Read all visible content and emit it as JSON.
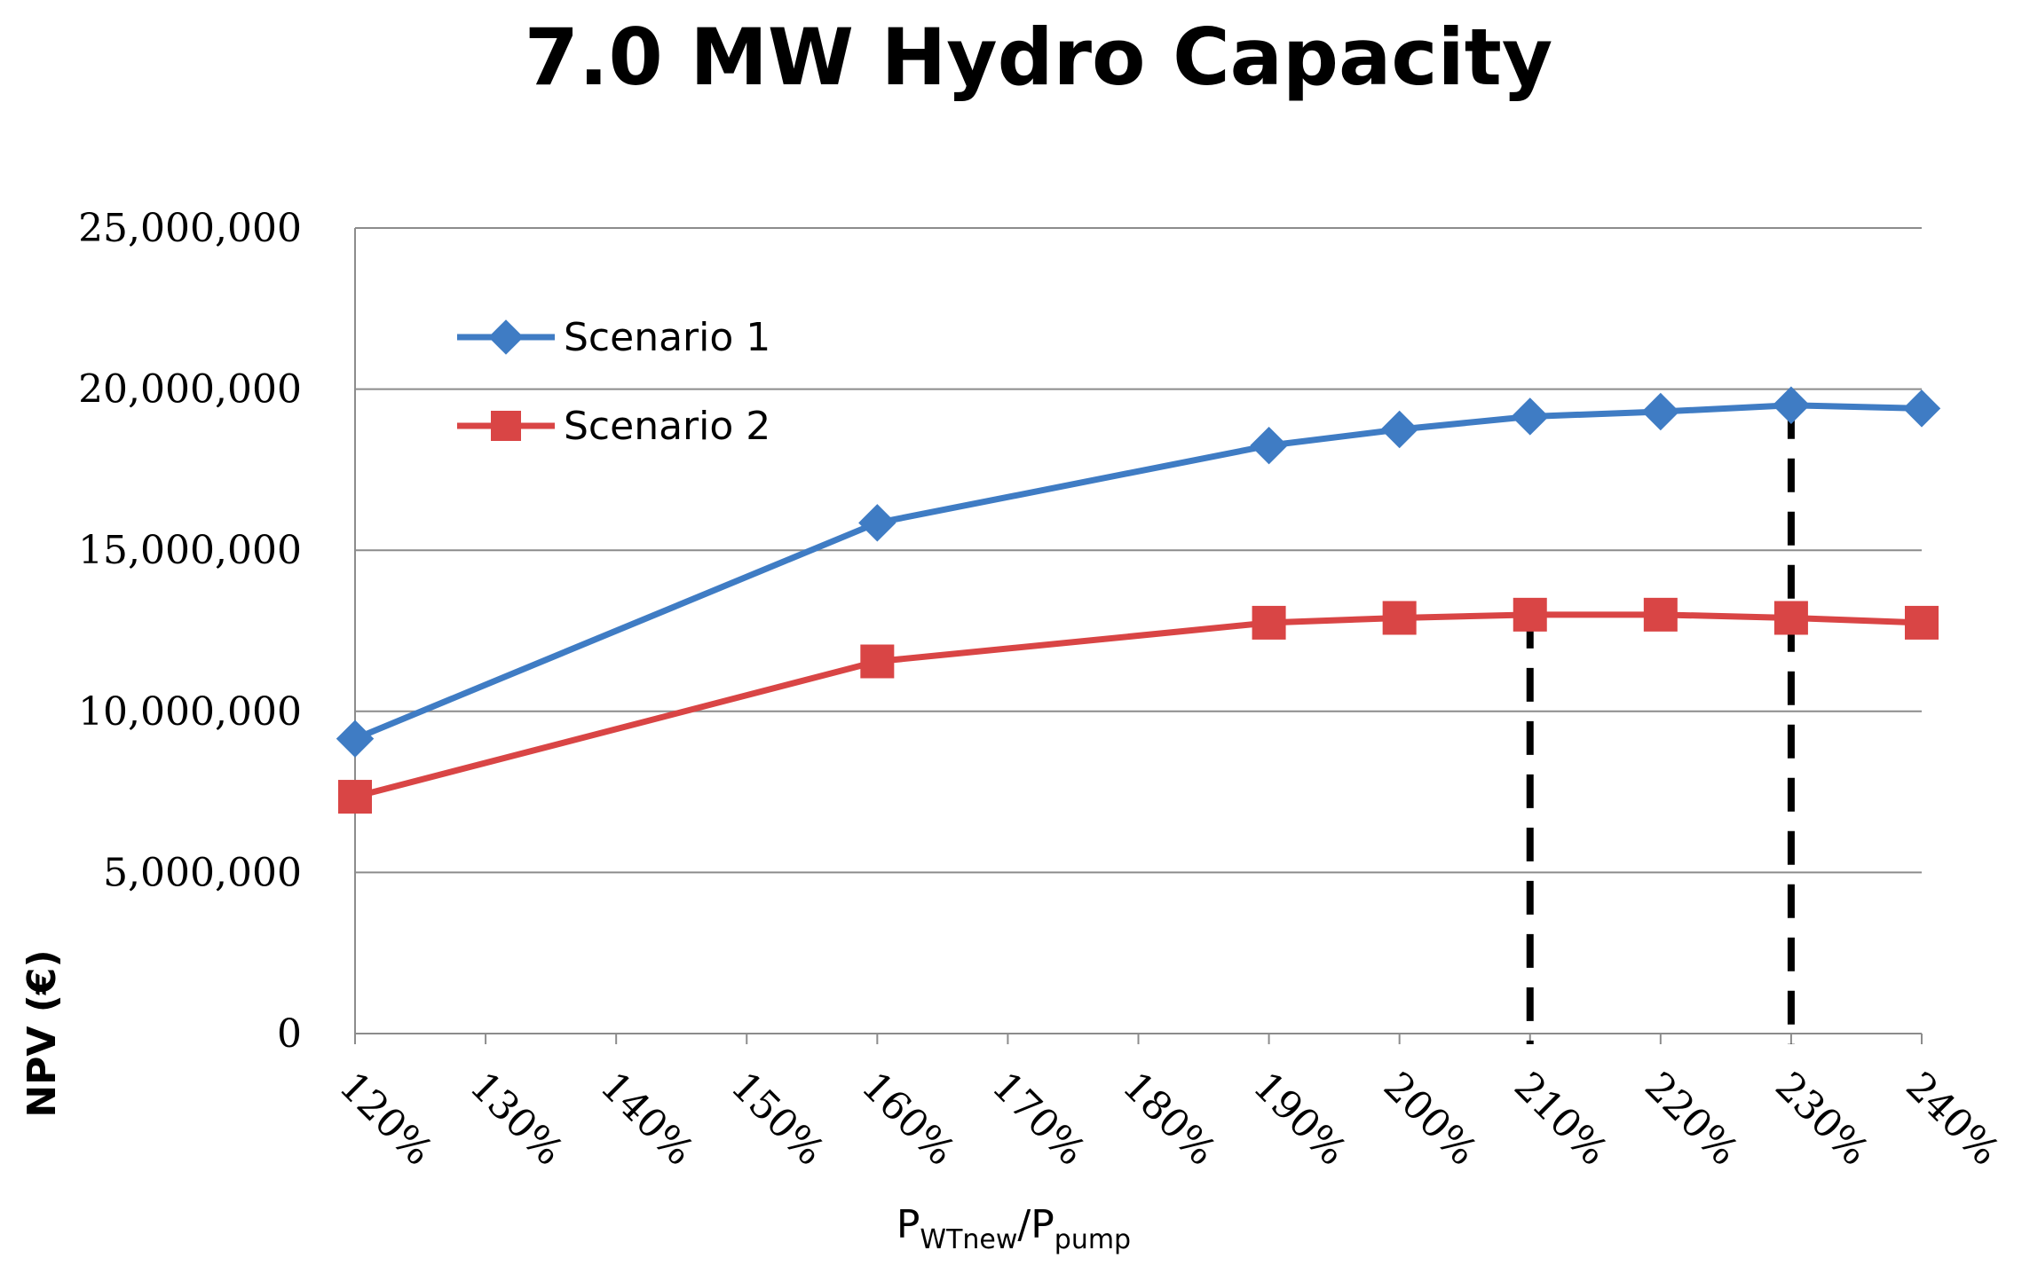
{
  "chart_data": {
    "type": "line",
    "title": "7.0 MW Hydro Capacity",
    "ylabel": "NPV (€)",
    "xlabel": {
      "main1": "P",
      "sub1": "WTnew",
      "sep": "/P",
      "sub2": "pump"
    },
    "ylim": [
      0,
      25000000
    ],
    "yticks": [
      0,
      5000000,
      10000000,
      15000000,
      20000000,
      25000000
    ],
    "ytick_labels": [
      "0",
      "5,000,000",
      "10,000,000",
      "15,000,000",
      "20,000,000",
      "25,000,000"
    ],
    "categories": [
      "120%",
      "130%",
      "140%",
      "150%",
      "160%",
      "170%",
      "180%",
      "190%",
      "200%",
      "210%",
      "220%",
      "230%",
      "240%"
    ],
    "grid": true,
    "legend_position": "upper-left inside plot",
    "series": [
      {
        "name": "Scenario 1",
        "color": "#3f7cc4",
        "marker": "diamond",
        "x": [
          "120%",
          "160%",
          "190%",
          "200%",
          "210%",
          "220%",
          "230%",
          "240%"
        ],
        "values": [
          9150000,
          15850000,
          18250000,
          18750000,
          19150000,
          19300000,
          19500000,
          19400000
        ]
      },
      {
        "name": "Scenario 2",
        "color": "#d94545",
        "marker": "square",
        "x": [
          "120%",
          "160%",
          "190%",
          "200%",
          "210%",
          "220%",
          "230%",
          "240%"
        ],
        "values": [
          7350000,
          11550000,
          12750000,
          12900000,
          13000000,
          13000000,
          12900000,
          12750000
        ]
      }
    ],
    "annotations": [
      {
        "type": "dashed-vline",
        "x": "210%",
        "from": 0,
        "to": 13000000,
        "color": "#000000"
      },
      {
        "type": "dashed-vline",
        "x": "230%",
        "from": 0,
        "to": 19500000,
        "color": "#000000"
      }
    ]
  }
}
